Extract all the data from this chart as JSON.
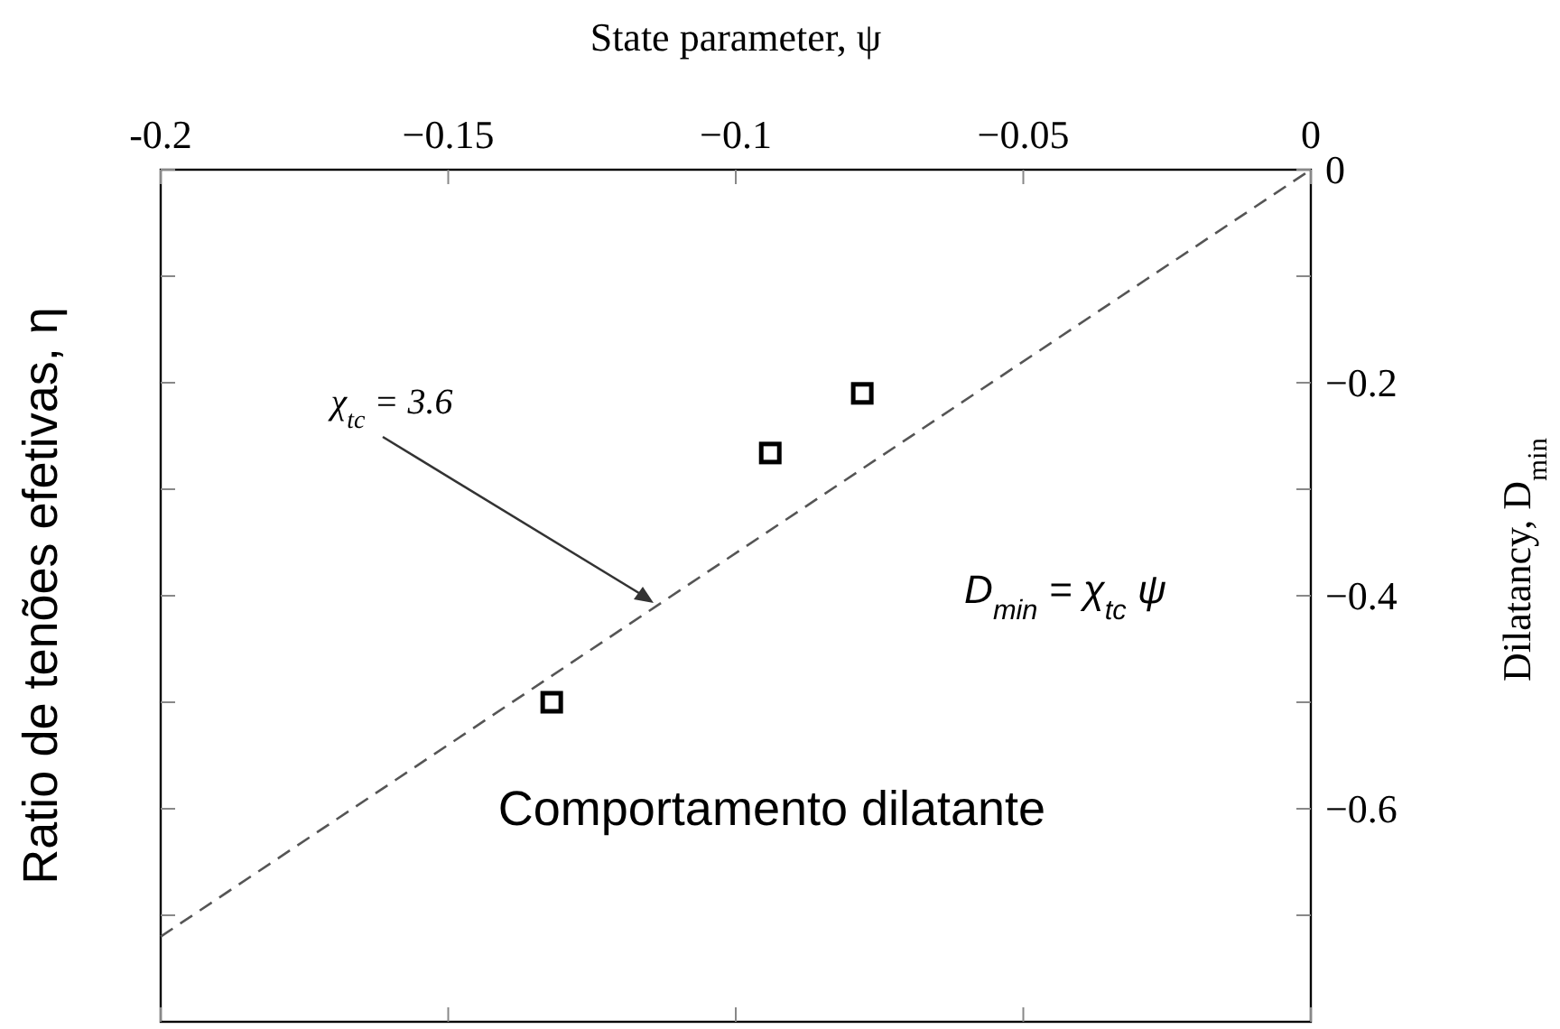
{
  "chart_data": {
    "type": "scatter",
    "xlabel": "State parameter, ψ",
    "ylabel": "Ratio de tenões efetivas, η",
    "y2label": "Dilatancy, D$_{min}$",
    "xlim": [
      -0.2,
      0
    ],
    "xticks": [
      {
        "value": -0.2,
        "label": "-0.2"
      },
      {
        "value": -0.15,
        "label": "−0.15"
      },
      {
        "value": -0.1,
        "label": "−0.1"
      },
      {
        "value": -0.05,
        "label": "−0.05"
      },
      0
    ],
    "y2lim": [
      -0.8,
      0
    ],
    "y2ticks": [
      {
        "value": -0.7,
        "label": null
      },
      {
        "value": -0.6,
        "label": "−0.6"
      },
      {
        "value": -0.5,
        "label": null
      },
      {
        "value": -0.4,
        "label": "−0.4"
      },
      {
        "value": -0.3,
        "label": null
      },
      {
        "value": -0.2,
        "label": "−0.2"
      },
      {
        "value": -0.1,
        "label": null
      },
      0
    ],
    "series": [
      {
        "type": "line",
        "color": "#555555",
        "line_style": "dashed",
        "marker": "none",
        "axis": "y2",
        "x": [
          -0.2,
          0
        ],
        "values": [
          -0.72,
          0
        ]
      },
      {
        "color": "#000000",
        "marker": "square",
        "axis": "y2",
        "x": [
          -0.132,
          -0.094,
          -0.078
        ],
        "values": [
          -0.5,
          -0.266,
          -0.21
        ]
      }
    ],
    "annotations": [
      "χ$_{tc}$ = 3.6",
      "D$_{min}$ = χ$_{tc}$  ψ",
      "Comportamento dilatante"
    ]
  }
}
